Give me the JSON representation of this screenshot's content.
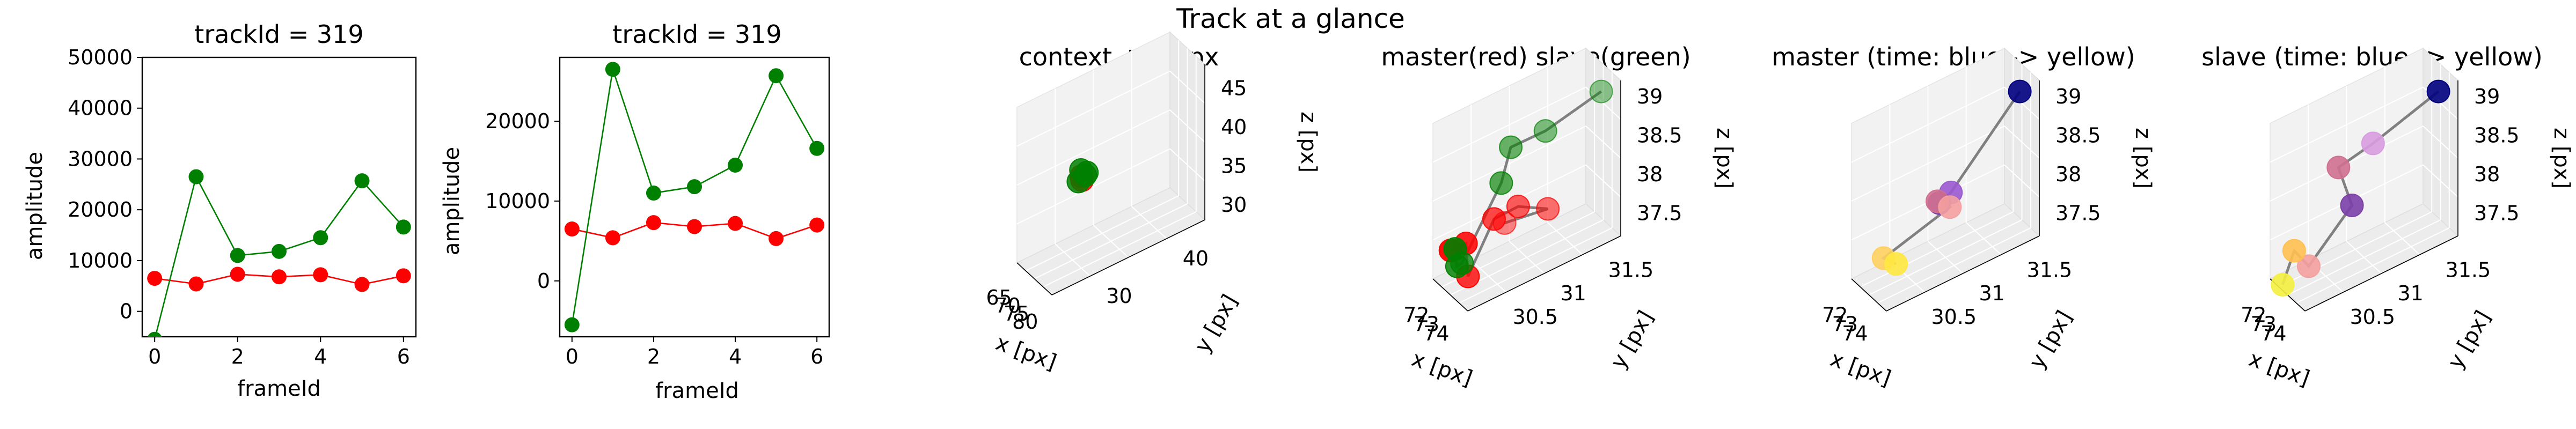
{
  "suptitle": "Track at a glance",
  "chart_data": [
    {
      "type": "line",
      "title": "trackId = 319",
      "xlabel": "frameId",
      "ylabel": "amplitude",
      "xlim": [
        -0.3,
        6.3
      ],
      "ylim": [
        -5000,
        50000
      ],
      "xticks": [
        0,
        2,
        4,
        6
      ],
      "yticks": [
        0,
        10000,
        20000,
        30000,
        40000,
        50000
      ],
      "series": [
        {
          "color": "#ff0000",
          "x": [
            0,
            1,
            2,
            3,
            4,
            5,
            6
          ],
          "y": [
            6500,
            5400,
            7300,
            6800,
            7200,
            5300,
            7000
          ]
        },
        {
          "color": "#008000",
          "x": [
            0,
            1,
            2,
            3,
            4,
            5,
            6
          ],
          "y": [
            -5500,
            26500,
            11000,
            11800,
            14500,
            25700,
            16600
          ]
        }
      ]
    },
    {
      "type": "line",
      "title": "trackId = 319",
      "xlabel": "frameId",
      "ylabel": "amplitude",
      "xlim": [
        -0.3,
        6.3
      ],
      "ylim": [
        -7000,
        28000
      ],
      "xticks": [
        0,
        2,
        4,
        6
      ],
      "yticks": [
        0,
        10000,
        20000
      ],
      "series": [
        {
          "color": "#ff0000",
          "x": [
            0,
            1,
            2,
            3,
            4,
            5,
            6
          ],
          "y": [
            6500,
            5400,
            7300,
            6800,
            7200,
            5300,
            7000
          ]
        },
        {
          "color": "#008000",
          "x": [
            0,
            1,
            2,
            3,
            4,
            5,
            6
          ],
          "y": [
            -5500,
            26500,
            11000,
            11800,
            14500,
            25700,
            16600
          ]
        }
      ]
    },
    {
      "type": "scatter3d",
      "title": "context +- 10px",
      "xlabel": "x [px]",
      "ylabel": "y [px]",
      "zlabel": "z [px]",
      "xlim": [
        63,
        83
      ],
      "ylim": [
        25,
        45
      ],
      "zlim": [
        28,
        48
      ],
      "xticks": [
        65,
        70,
        75,
        80
      ],
      "yticks": [
        30,
        40
      ],
      "zticks": [
        30,
        35,
        40,
        45
      ],
      "points": [
        {
          "x": 73.5,
          "y": 31.0,
          "z": 38.4,
          "color": "#ff0000"
        },
        {
          "x": 74.0,
          "y": 31.0,
          "z": 38.0,
          "color": "#ff0000"
        },
        {
          "x": 72.5,
          "y": 31.2,
          "z": 38.9,
          "color": "#008000"
        },
        {
          "x": 74.5,
          "y": 31.3,
          "z": 38.6,
          "color": "#008000"
        },
        {
          "x": 73.2,
          "y": 30.7,
          "z": 37.8,
          "color": "#008000"
        },
        {
          "x": 75.0,
          "y": 31.4,
          "z": 39.0,
          "color": "#008000"
        }
      ]
    },
    {
      "type": "scatter3d",
      "title": "master(red) slave(green)",
      "xlabel": "x [px]",
      "ylabel": "y [px]",
      "zlabel": "z [px]",
      "xlim": [
        71.5,
        75.0
      ],
      "ylim": [
        30.2,
        31.8
      ],
      "zlim": [
        37.2,
        39.2
      ],
      "xticks": [
        72,
        73,
        74
      ],
      "yticks": [
        30.5,
        31.0,
        31.5
      ],
      "zticks": [
        37.5,
        38.0,
        38.5,
        39.0
      ],
      "red": [
        {
          "x": 72.3,
          "y": 30.3,
          "z": 37.6
        },
        {
          "x": 72.9,
          "y": 30.4,
          "z": 37.7
        },
        {
          "x": 73.1,
          "y": 30.4,
          "z": 37.3
        },
        {
          "x": 73.8,
          "y": 30.6,
          "z": 38.0
        },
        {
          "x": 74.3,
          "y": 30.8,
          "z": 38.1
        },
        {
          "x": 74.4,
          "y": 31.1,
          "z": 37.9
        },
        {
          "x": 73.9,
          "y": 30.7,
          "z": 37.9
        }
      ],
      "green": [
        {
          "x": 71.8,
          "y": 30.4,
          "z": 37.5
        },
        {
          "x": 72.0,
          "y": 30.4,
          "z": 37.3
        },
        {
          "x": 72.5,
          "y": 30.4,
          "z": 37.4
        },
        {
          "x": 72.6,
          "y": 30.8,
          "z": 38.2
        },
        {
          "x": 72.6,
          "y": 30.9,
          "z": 38.6
        },
        {
          "x": 73.2,
          "y": 31.2,
          "z": 38.7
        },
        {
          "x": 74.0,
          "y": 31.7,
          "z": 39.0
        }
      ]
    },
    {
      "type": "scatter3d",
      "title": "master (time: blue -> yellow)",
      "xlabel": "x [px]",
      "ylabel": "y [px]",
      "zlabel": "z [px]",
      "xlim": [
        71.5,
        75.0
      ],
      "ylim": [
        30.2,
        31.8
      ],
      "zlim": [
        37.2,
        39.2
      ],
      "xticks": [
        72,
        73,
        74
      ],
      "yticks": [
        30.5,
        31.0,
        31.5
      ],
      "zticks": [
        37.5,
        38.0,
        38.5,
        39.0
      ],
      "colors": [
        "#000080",
        "#9b59d0",
        "#7b3fa8",
        "#d07090",
        "#f4a0a0",
        "#ffd060",
        "#ffe840"
      ],
      "points": [
        {
          "x": 74.0,
          "y": 31.7,
          "z": 39.0
        },
        {
          "x": 73.8,
          "y": 31.0,
          "z": 38.1
        },
        {
          "x": 73.6,
          "y": 30.9,
          "z": 38.0
        },
        {
          "x": 73.4,
          "y": 30.9,
          "z": 38.0
        },
        {
          "x": 73.7,
          "y": 31.0,
          "z": 37.9
        },
        {
          "x": 72.8,
          "y": 30.4,
          "z": 37.5
        },
        {
          "x": 73.1,
          "y": 30.5,
          "z": 37.4
        }
      ]
    },
    {
      "type": "scatter3d",
      "title": "slave (time: blue -> yellow)",
      "xlabel": "x [px]",
      "ylabel": "y [px]",
      "zlabel": "z [px]",
      "xlim": [
        71.5,
        75.0
      ],
      "ylim": [
        30.2,
        31.8
      ],
      "zlim": [
        37.2,
        39.2
      ],
      "xticks": [
        72,
        73,
        74
      ],
      "yticks": [
        30.5,
        31.0,
        31.5
      ],
      "zticks": [
        37.5,
        38.0,
        38.5,
        39.0
      ],
      "colors": [
        "#000080",
        "#d89ce0",
        "#d07090",
        "#7b3fa8",
        "#f4a0a0",
        "#ffc050",
        "#f4f040"
      ],
      "points": [
        {
          "x": 74.0,
          "y": 31.7,
          "z": 39.0
        },
        {
          "x": 73.2,
          "y": 31.1,
          "z": 38.6
        },
        {
          "x": 72.6,
          "y": 30.8,
          "z": 38.4
        },
        {
          "x": 73.0,
          "y": 30.9,
          "z": 37.9
        },
        {
          "x": 72.5,
          "y": 30.5,
          "z": 37.3
        },
        {
          "x": 72.0,
          "y": 30.4,
          "z": 37.5
        },
        {
          "x": 71.8,
          "y": 30.3,
          "z": 37.1
        }
      ]
    }
  ]
}
